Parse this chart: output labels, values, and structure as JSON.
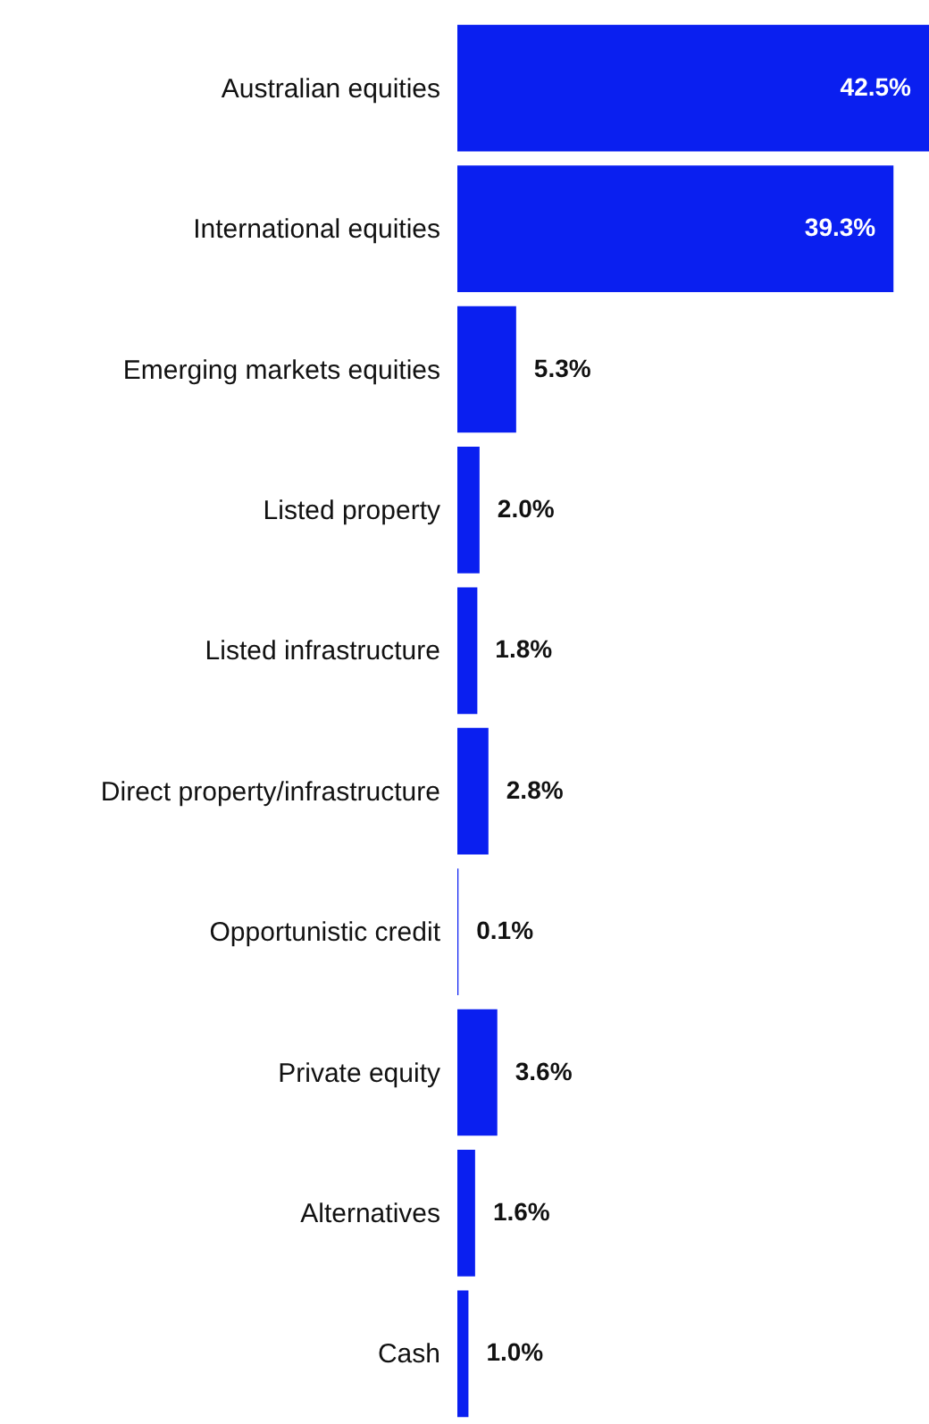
{
  "chart_data": {
    "type": "bar",
    "orientation": "horizontal",
    "categories": [
      "Australian equities",
      "International equities",
      "Emerging markets equities",
      "Listed property",
      "Listed infrastructure",
      "Direct property/infrastructure",
      "Opportunistic credit",
      "Private equity",
      "Alternatives",
      "Cash"
    ],
    "values": [
      42.5,
      39.3,
      5.3,
      2.0,
      1.8,
      2.8,
      0.1,
      3.6,
      1.6,
      1.0
    ],
    "value_labels": [
      "42.5%",
      "39.3%",
      "5.3%",
      "2.0%",
      "1.8%",
      "2.8%",
      "0.1%",
      "3.6%",
      "1.6%",
      "1.0%"
    ],
    "color": "#0a1ff0"
  }
}
